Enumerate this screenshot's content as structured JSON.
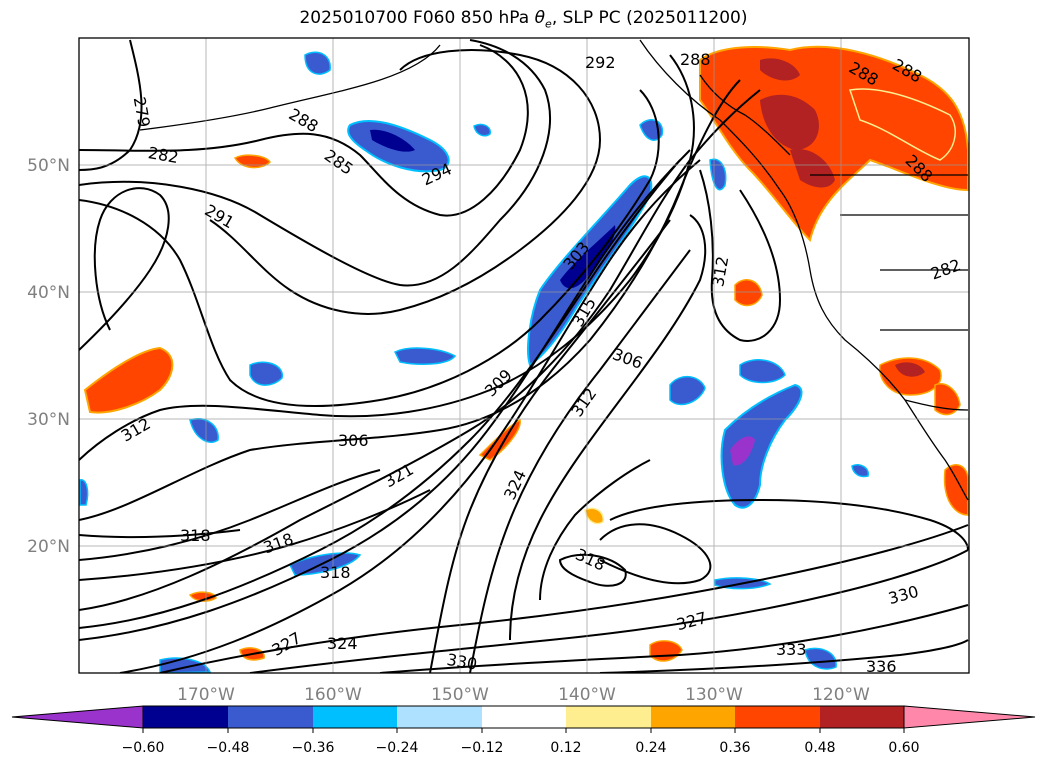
{
  "title": {
    "prefix": "2025010700 F060 850 hPa ",
    "symbol": "θ",
    "subscript": "e",
    "suffix": ", SLP PC (2025011200)"
  },
  "map": {
    "lon_range": [
      -180,
      -110
    ],
    "lat_range": [
      10,
      60
    ],
    "lon_ticks": [
      "170°W",
      "160°W",
      "150°W",
      "140°W",
      "130°W",
      "120°W"
    ],
    "lat_ticks": [
      "20°N",
      "30°N",
      "40°N",
      "50°N"
    ],
    "grid": true,
    "contour_labels": [
      "279",
      "282",
      "285",
      "288",
      "288",
      "291",
      "292",
      "294",
      "303",
      "306",
      "306",
      "309",
      "312",
      "312",
      "312",
      "315",
      "318",
      "318",
      "318",
      "318",
      "321",
      "324",
      "324",
      "327",
      "327",
      "330",
      "330",
      "333",
      "336",
      "282",
      "288",
      "288",
      "288"
    ],
    "shading_colors": {
      "strong_negative": "#9933CC",
      "navy": "#000090",
      "royal_blue": "#3A5BD0",
      "sky_blue": "#00BFFF",
      "light_blue": "#ADE1FF",
      "light_yellow": "#FFEE90",
      "orange": "#FFA500",
      "red_orange": "#FF4500",
      "dark_red": "#B22222",
      "pink": "#FF88AA"
    }
  },
  "colorbar": {
    "ticks": [
      "−0.60",
      "−0.48",
      "−0.36",
      "−0.24",
      "−0.12",
      "0.12",
      "0.24",
      "0.36",
      "0.48",
      "0.60"
    ],
    "colors": [
      "#9933CC",
      "#000090",
      "#3A5BD0",
      "#00BFFF",
      "#ADE1FF",
      "#FFFFFF",
      "#FFEE90",
      "#FFA500",
      "#FF4500",
      "#B22222",
      "#FF88AA"
    ],
    "extend": "both"
  }
}
